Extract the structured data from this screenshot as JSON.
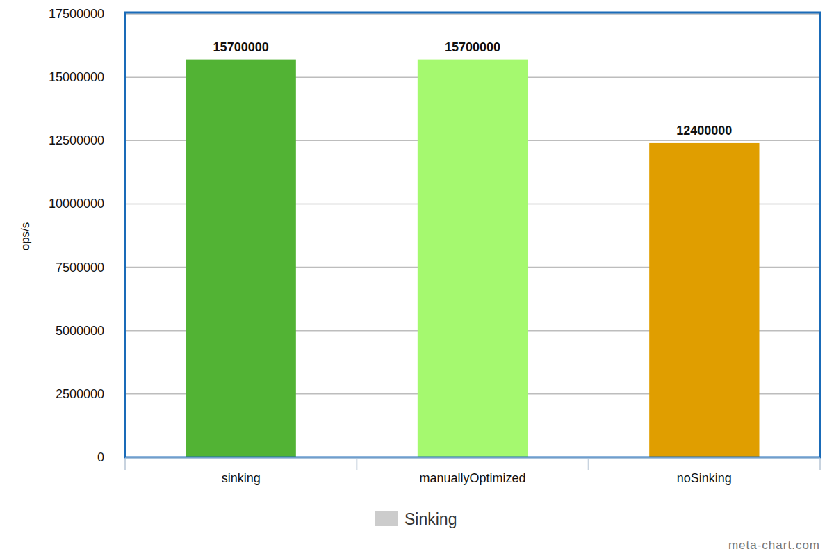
{
  "chart_data": {
    "type": "bar",
    "y_label": "ops/s",
    "categories": [
      "sinking",
      "manuallyOptimized",
      "noSinking"
    ],
    "series": [
      {
        "name": "Sinking",
        "color": "#cccccc",
        "colors": [
          "#52b334",
          "#a5f96f",
          "#e09e00"
        ],
        "values": [
          15700000,
          15700000,
          12400000
        ]
      }
    ],
    "ylim": [
      0,
      17500000
    ],
    "yticks": [
      0,
      2500000,
      5000000,
      7500000,
      10000000,
      12500000,
      15000000,
      17500000
    ],
    "grid": true,
    "data_labels": true,
    "legend": "bottom",
    "annotations": [
      "meta-chart.com"
    ]
  }
}
